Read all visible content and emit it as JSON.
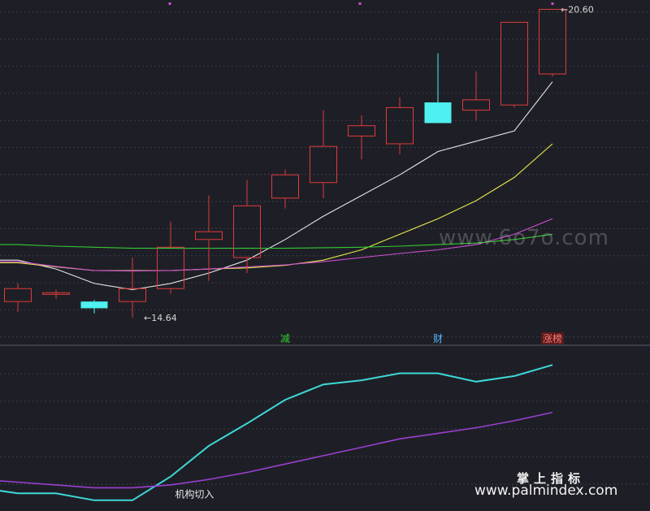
{
  "chart_data": [
    {
      "type": "candlestick",
      "panel": "price",
      "x": [
        1,
        2,
        3,
        4,
        5,
        6,
        7,
        8,
        9,
        10,
        11,
        12,
        13,
        14,
        15
      ],
      "candles": [
        {
          "open": 14.95,
          "close": 15.2,
          "high": 15.3,
          "low": 14.75
        },
        {
          "open": 15.12,
          "close": 15.12,
          "high": 15.18,
          "low": 15.0
        },
        {
          "open": 14.95,
          "close": 14.82,
          "high": 14.98,
          "low": 14.72
        },
        {
          "open": 14.95,
          "close": 15.2,
          "high": 15.8,
          "low": 14.64
        },
        {
          "open": 15.2,
          "close": 16.0,
          "high": 16.5,
          "low": 15.1
        },
        {
          "open": 16.15,
          "close": 16.3,
          "high": 17.0,
          "low": 15.35
        },
        {
          "open": 15.8,
          "close": 16.8,
          "high": 17.3,
          "low": 15.5
        },
        {
          "open": 16.95,
          "close": 17.4,
          "high": 17.5,
          "low": 16.75
        },
        {
          "open": 17.25,
          "close": 17.95,
          "high": 18.65,
          "low": 16.95
        },
        {
          "open": 18.15,
          "close": 18.35,
          "high": 18.55,
          "low": 17.7
        },
        {
          "open": 18.0,
          "close": 18.7,
          "high": 18.9,
          "low": 17.8
        },
        {
          "open": 18.8,
          "close": 18.4,
          "high": 19.75,
          "low": 18.4
        },
        {
          "open": 18.65,
          "close": 18.85,
          "high": 19.4,
          "low": 18.45
        },
        {
          "open": 18.75,
          "close": 20.35,
          "high": 20.35,
          "low": 18.7
        },
        {
          "open": 19.35,
          "close": 20.6,
          "high": 20.6,
          "low": 19.3
        }
      ],
      "ma_lines": [
        {
          "color": "#e6e6e6",
          "values": [
            15.75,
            15.58,
            15.3,
            15.18,
            15.3,
            15.5,
            15.75,
            16.15,
            16.6,
            17.0,
            17.4,
            17.85,
            18.05,
            18.25,
            19.2
          ]
        },
        {
          "color": "#e8e84a",
          "values": [
            15.7,
            15.62,
            15.55,
            15.55,
            15.55,
            15.58,
            15.6,
            15.65,
            15.75,
            15.95,
            16.25,
            16.55,
            16.9,
            17.35,
            18.0
          ]
        },
        {
          "color": "#d14fd6",
          "values": [
            15.72,
            15.63,
            15.55,
            15.54,
            15.55,
            15.58,
            15.62,
            15.66,
            15.72,
            15.8,
            15.88,
            15.95,
            16.05,
            16.25,
            16.55
          ]
        },
        {
          "color": "#36c936",
          "values": [
            16.05,
            16.02,
            16.0,
            15.98,
            15.98,
            15.98,
            15.98,
            15.98,
            15.99,
            16.0,
            16.02,
            16.05,
            16.08,
            16.15,
            16.25
          ]
        }
      ],
      "ylim": [
        14.12,
        20.78
      ],
      "annotations": [
        {
          "text": "14.64",
          "x": 4,
          "y": 14.64
        },
        {
          "text": "20.60",
          "x": 15,
          "y": 20.6
        }
      ],
      "signals": [
        {
          "text": "减",
          "x": 8,
          "color": "#2fd12f"
        },
        {
          "text": "财",
          "x": 12,
          "color": "#5ab4ff"
        },
        {
          "text": "涨榜",
          "x": 15,
          "color": "#ff7a7a",
          "bg": "#5a1a1a"
        }
      ],
      "grid": true
    },
    {
      "type": "line",
      "panel": "indicator",
      "x": [
        0,
        1,
        2,
        3,
        4,
        5,
        6,
        7,
        8,
        9,
        10,
        11,
        12,
        13,
        14,
        15
      ],
      "series": [
        {
          "color": "#3ed8d8",
          "values": [
            12,
            8,
            8,
            3,
            3,
            20,
            42,
            58,
            75,
            86,
            89,
            94,
            94,
            88,
            92,
            100
          ]
        },
        {
          "color": "#9a3fd0",
          "values": [
            18,
            16,
            14,
            12,
            12,
            14,
            18,
            23,
            29,
            35,
            41,
            47,
            51,
            55,
            60,
            66
          ]
        }
      ],
      "ylim": [
        0,
        110
      ],
      "annotations": [
        {
          "text": "机构切入",
          "x": 5.2,
          "y": 6
        }
      ],
      "grid": true
    }
  ],
  "colors": {
    "background": "#1e1f26",
    "up": "#e03a3a",
    "down": "#4ef0f0",
    "grid": "#3a3d48",
    "axis_text": "#d8d8d8"
  },
  "watermark": "www.6o7o.com",
  "brand": {
    "title": "掌上指标",
    "url": "www.palmindex.com"
  }
}
